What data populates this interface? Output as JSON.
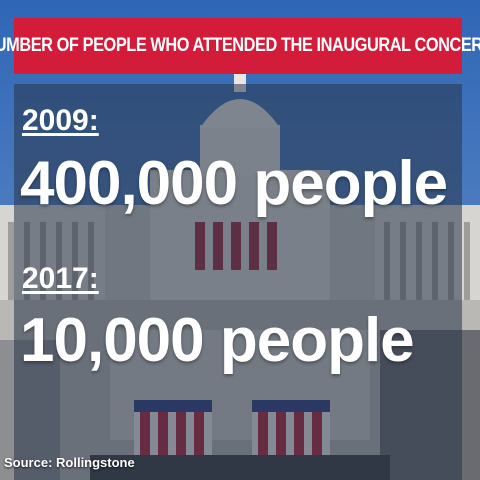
{
  "banner": {
    "text": "NUMBER OF PEOPLE WHO ATTENDED THE INAUGURAL CONCERT"
  },
  "entries": [
    {
      "year": "2009:",
      "count": "400,000 people"
    },
    {
      "year": "2017:",
      "count": "10,000 people"
    }
  ],
  "source": {
    "text": "Source: Rollingstone"
  },
  "colors": {
    "banner": "#d21c3a",
    "sky": "#3b6fb4",
    "text": "#ffffff"
  }
}
